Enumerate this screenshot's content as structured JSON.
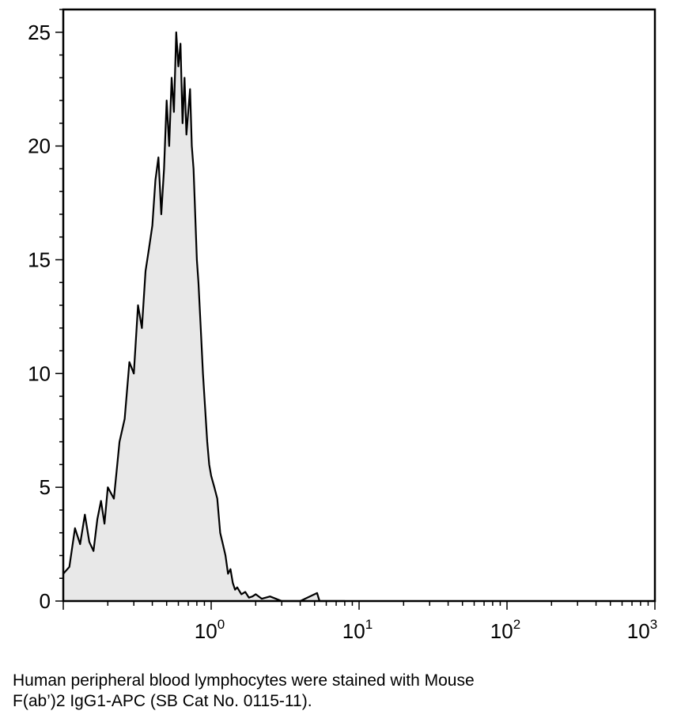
{
  "chart_data": {
    "type": "area",
    "x_scale": "log",
    "xlim": [
      0.1,
      1000
    ],
    "ylim": [
      0,
      26
    ],
    "y_ticks": [
      "0",
      "5",
      "10",
      "15",
      "20",
      "25"
    ],
    "x_ticks": [
      {
        "base": "10",
        "exp": "0"
      },
      {
        "base": "10",
        "exp": "1"
      },
      {
        "base": "10",
        "exp": "2"
      },
      {
        "base": "10",
        "exp": "3"
      }
    ],
    "grid": false,
    "series": [
      {
        "fill": "#e8e8e8",
        "line": "#000000",
        "x": [
          0.1,
          0.11,
          0.12,
          0.13,
          0.14,
          0.15,
          0.16,
          0.17,
          0.18,
          0.19,
          0.2,
          0.22,
          0.24,
          0.26,
          0.28,
          0.3,
          0.32,
          0.34,
          0.36,
          0.38,
          0.4,
          0.42,
          0.44,
          0.46,
          0.48,
          0.5,
          0.52,
          0.54,
          0.56,
          0.58,
          0.6,
          0.62,
          0.64,
          0.66,
          0.68,
          0.7,
          0.72,
          0.74,
          0.76,
          0.78,
          0.8,
          0.82,
          0.85,
          0.88,
          0.91,
          0.94,
          0.97,
          1.0,
          1.05,
          1.1,
          1.15,
          1.2,
          1.25,
          1.3,
          1.35,
          1.4,
          1.45,
          1.5,
          1.6,
          1.7,
          1.8,
          1.9,
          2.0,
          2.2,
          2.5,
          3.0,
          4.0,
          5.2,
          5.4,
          6.0,
          8.0
        ],
        "y": [
          1.2,
          1.5,
          3.2,
          2.5,
          3.8,
          2.6,
          2.2,
          3.6,
          4.4,
          3.4,
          5.0,
          4.5,
          7.0,
          8.0,
          10.5,
          10.0,
          13.0,
          12.0,
          14.5,
          15.5,
          16.5,
          18.5,
          19.5,
          17.0,
          19.0,
          22.0,
          20.0,
          23.0,
          21.5,
          25.0,
          23.5,
          24.5,
          21.0,
          23.0,
          20.5,
          21.5,
          22.5,
          20.0,
          19.0,
          17.0,
          15.0,
          14.0,
          12.0,
          10.0,
          8.5,
          7.0,
          6.0,
          5.5,
          5.0,
          4.5,
          3.0,
          2.5,
          2.0,
          1.2,
          1.4,
          0.8,
          0.5,
          0.6,
          0.3,
          0.4,
          0.15,
          0.2,
          0.3,
          0.1,
          0.2,
          0.0,
          0.0,
          0.35,
          0.0,
          0.0,
          0.0
        ]
      }
    ]
  },
  "caption": {
    "line1": "Human peripheral blood lymphocytes were stained with Mouse",
    "line2": "F(ab’)2 IgG1-APC (SB Cat  No. 0115-11)."
  }
}
